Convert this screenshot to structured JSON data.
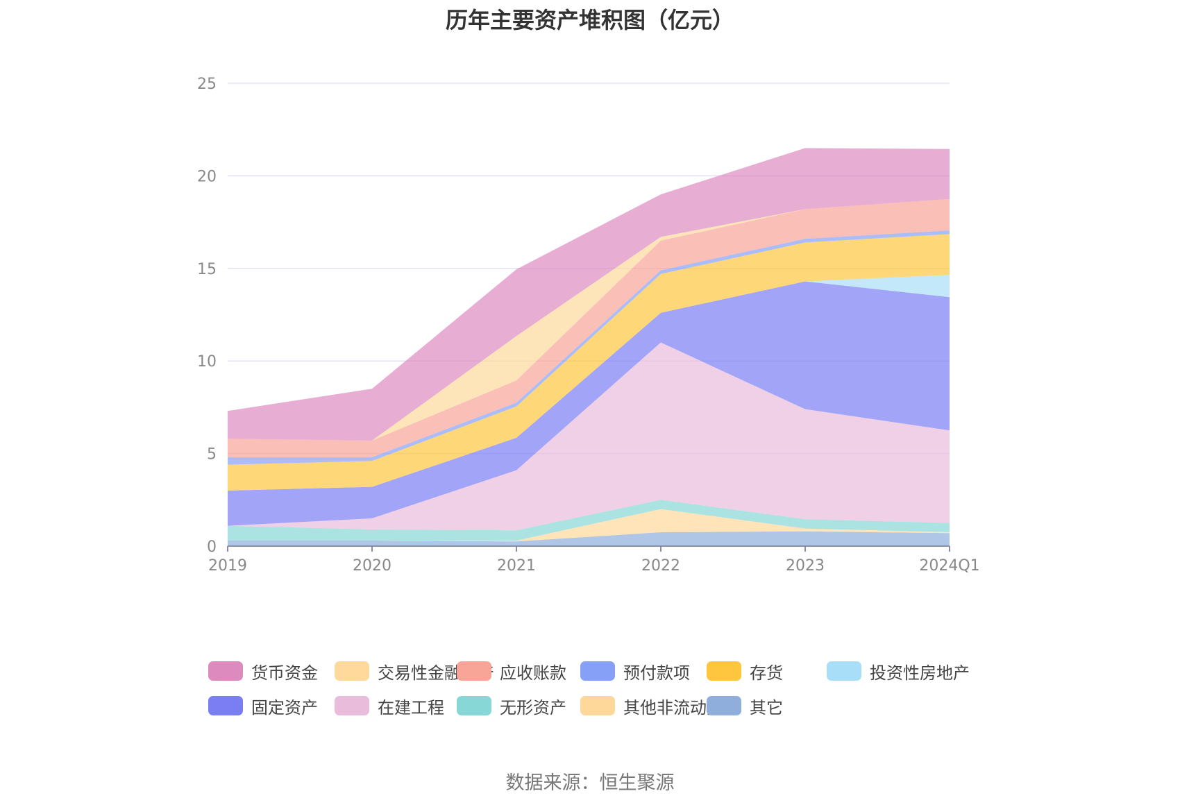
{
  "chart_data": {
    "type": "area",
    "stacked": true,
    "title": "历年主要资产堆积图（亿元）",
    "categories": [
      "2019",
      "2020",
      "2021",
      "2022",
      "2023",
      "2024Q1"
    ],
    "ylim": [
      0,
      25
    ],
    "yticks": [
      0,
      5,
      10,
      15,
      20,
      25
    ],
    "grid": true,
    "legend_position": "bottom",
    "series": [
      {
        "name": "其它",
        "color": "#8faedb",
        "values": [
          0.3,
          0.3,
          0.25,
          0.75,
          0.8,
          0.7
        ]
      },
      {
        "name": "其他非流动资产",
        "color": "#fdd89a",
        "values": [
          0.0,
          0.0,
          0.05,
          1.25,
          0.15,
          0.05
        ]
      },
      {
        "name": "无形资产",
        "color": "#87d7d6",
        "values": [
          0.8,
          0.6,
          0.55,
          0.5,
          0.5,
          0.5
        ]
      },
      {
        "name": "在建工程",
        "color": "#e9bcdc",
        "values": [
          0.0,
          0.6,
          3.25,
          8.5,
          5.95,
          5.0
        ]
      },
      {
        "name": "固定资产",
        "color": "#7b7ef3",
        "values": [
          1.9,
          1.7,
          1.75,
          1.6,
          6.9,
          7.2
        ]
      },
      {
        "name": "投资性房地产",
        "color": "#a8def8",
        "values": [
          0.0,
          0.0,
          0.0,
          0.0,
          0.0,
          1.2
        ]
      },
      {
        "name": "存货",
        "color": "#fec63f",
        "values": [
          1.4,
          1.4,
          1.7,
          2.1,
          2.1,
          2.2
        ]
      },
      {
        "name": "预付款项",
        "color": "#86a0f7",
        "values": [
          0.4,
          0.2,
          0.2,
          0.2,
          0.2,
          0.2
        ]
      },
      {
        "name": "应收账款",
        "color": "#f8a497",
        "values": [
          1.0,
          0.9,
          1.2,
          1.6,
          1.6,
          1.7
        ]
      },
      {
        "name": "交易性金融资产",
        "color": "#fed99b",
        "values": [
          0.0,
          0.0,
          2.4,
          0.2,
          0.0,
          0.0
        ]
      },
      {
        "name": "货币资金",
        "color": "#dd8abf",
        "values": [
          1.5,
          2.8,
          3.6,
          2.3,
          3.3,
          2.7
        ]
      }
    ]
  },
  "legend_order": [
    "货币资金",
    "交易性金融资产",
    "应收账款",
    "预付款项",
    "存货",
    "投资性房地产",
    "固定资产",
    "在建工程",
    "无形资产",
    "其他非流动资产",
    "其它"
  ],
  "source_text": "数据来源：恒生聚源"
}
